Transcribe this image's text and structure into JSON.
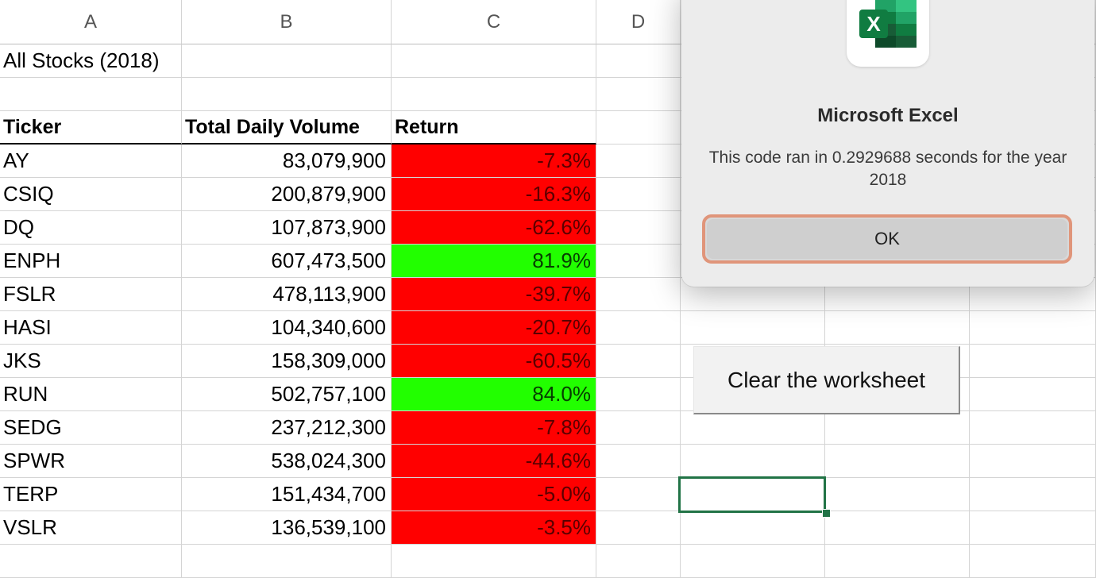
{
  "columns": [
    "A",
    "B",
    "C",
    "D"
  ],
  "title_cell": "All Stocks (2018)",
  "table_headers": [
    "Ticker",
    "Total Daily Volume",
    "Return"
  ],
  "rows": [
    {
      "ticker": "AY",
      "volume": "83,079,900",
      "return": "-7.3%",
      "status": "negative"
    },
    {
      "ticker": "CSIQ",
      "volume": "200,879,900",
      "return": "-16.3%",
      "status": "negative"
    },
    {
      "ticker": "DQ",
      "volume": "107,873,900",
      "return": "-62.6%",
      "status": "negative"
    },
    {
      "ticker": "ENPH",
      "volume": "607,473,500",
      "return": "81.9%",
      "status": "positive"
    },
    {
      "ticker": "FSLR",
      "volume": "478,113,900",
      "return": "-39.7%",
      "status": "negative"
    },
    {
      "ticker": "HASI",
      "volume": "104,340,600",
      "return": "-20.7%",
      "status": "negative"
    },
    {
      "ticker": "JKS",
      "volume": "158,309,000",
      "return": "-60.5%",
      "status": "negative"
    },
    {
      "ticker": "RUN",
      "volume": "502,757,100",
      "return": "84.0%",
      "status": "positive"
    },
    {
      "ticker": "SEDG",
      "volume": "237,212,300",
      "return": "-7.8%",
      "status": "negative"
    },
    {
      "ticker": "SPWR",
      "volume": "538,024,300",
      "return": "-44.6%",
      "status": "negative"
    },
    {
      "ticker": "TERP",
      "volume": "151,434,700",
      "return": "-5.0%",
      "status": "negative"
    },
    {
      "ticker": "VSLR",
      "volume": "136,539,100",
      "return": "-3.5%",
      "status": "negative"
    }
  ],
  "colors": {
    "negative": "#ff0000",
    "positive": "#22ff00",
    "excel_green": "#217346",
    "ok_focus_ring": "#e0957a"
  },
  "dialog": {
    "app_icon": "microsoft-excel-icon",
    "app_icon_letter": "X",
    "title": "Microsoft Excel",
    "message": "This code ran in 0.2929688 seconds for the year 2018",
    "ok_label": "OK"
  },
  "clear_button_label": "Clear the worksheet"
}
